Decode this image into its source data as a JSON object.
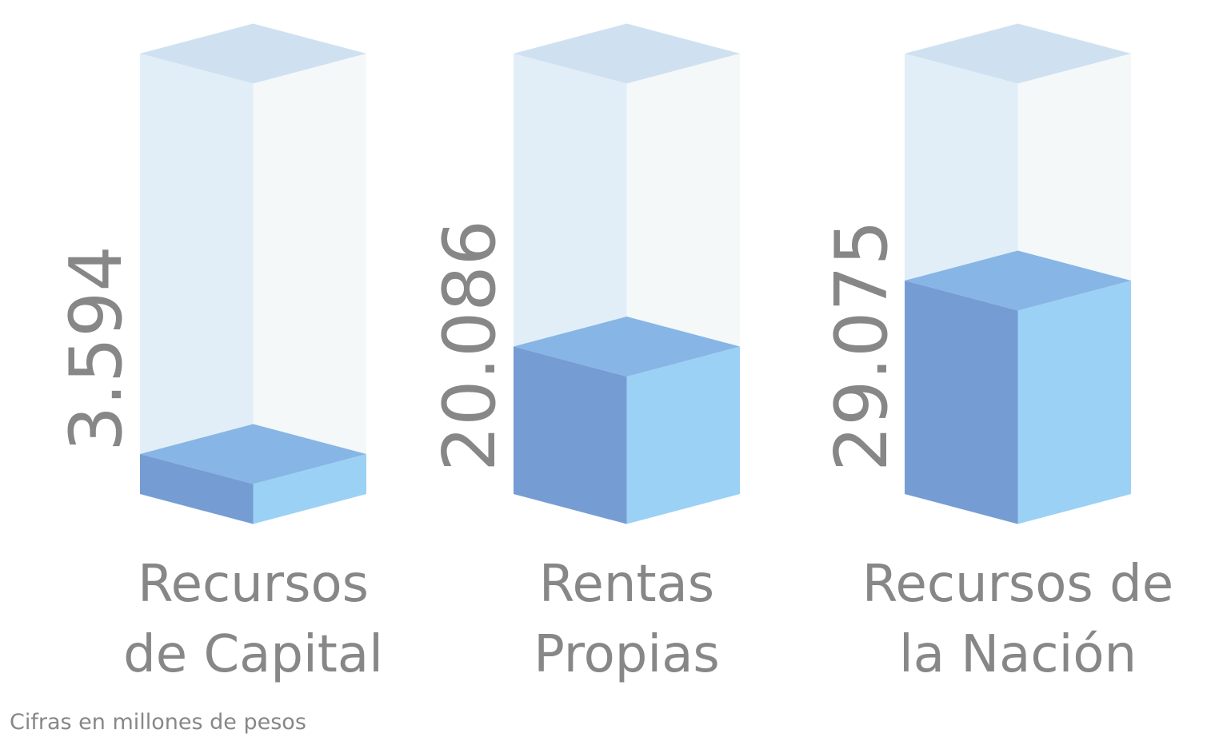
{
  "chart_data": {
    "type": "bar",
    "style": "3d-columns",
    "categories": [
      [
        "Recursos",
        "de Capital"
      ],
      [
        "Rentas",
        "Propias"
      ],
      [
        "Recursos de",
        "la Nación"
      ]
    ],
    "values": [
      3594,
      20086,
      29075
    ],
    "value_labels": [
      "3.594",
      "20.086",
      "29.075"
    ],
    "ylim": [
      0,
      60000
    ],
    "grid": false,
    "legend": "none",
    "note": "Cifras en millones de pesos"
  },
  "colors": {
    "ghost_top": "#cfe1f1",
    "ghost_left": "#e2eef7",
    "ghost_right": "#f4f8f9",
    "bar_top": "#87b5e5",
    "bar_left": "#759dd3",
    "bar_right": "#9bd1f4",
    "text": "#878787"
  }
}
